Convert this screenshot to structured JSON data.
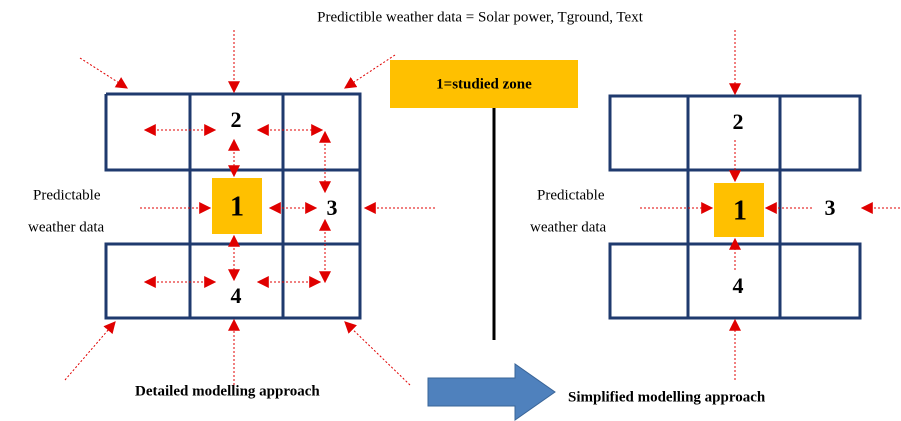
{
  "title": "Predictible weather data = Solar power, Tground, Text",
  "legend": "1=studied zone",
  "detailed": {
    "zones": [
      "1",
      "2",
      "3",
      "4"
    ],
    "side_label": [
      "Predictable",
      "weather data"
    ],
    "caption": "Detailed modelling approach"
  },
  "simplified": {
    "zones": [
      "1",
      "2",
      "3",
      "4"
    ],
    "side_label": [
      "Predictable",
      "weather data"
    ],
    "caption": "Simplified modelling approach"
  }
}
